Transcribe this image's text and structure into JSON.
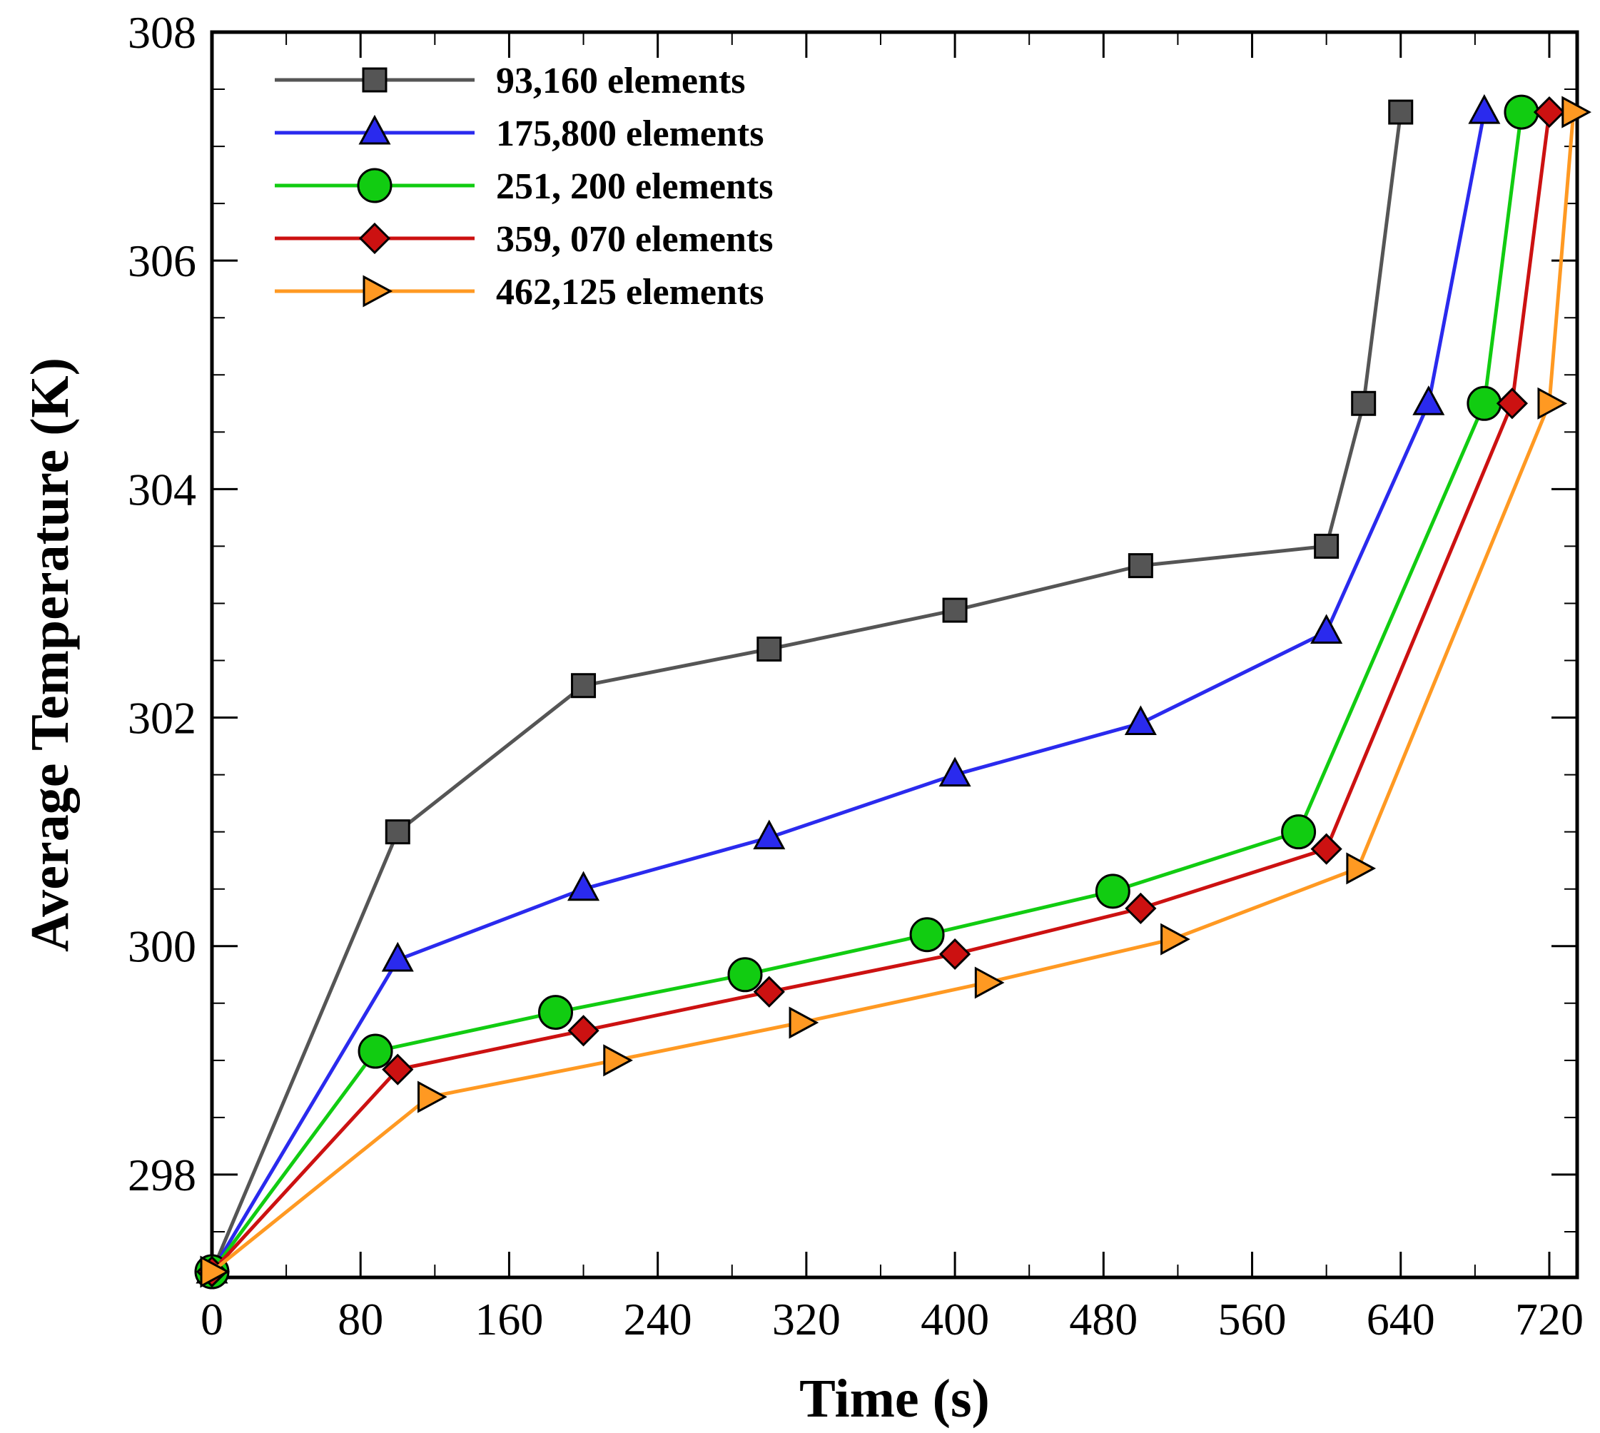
{
  "chart_data": {
    "type": "line",
    "xlabel": "Time (s)",
    "ylabel": "Average Temperature (K)",
    "xlim": [
      0,
      735
    ],
    "ylim": [
      297.1,
      308
    ],
    "x_ticks": [
      0,
      80,
      160,
      240,
      320,
      400,
      480,
      560,
      640,
      720
    ],
    "y_ticks": [
      298,
      300,
      302,
      304,
      306,
      308
    ],
    "legend_position": "top-left",
    "grid": false,
    "series": [
      {
        "name": "93,160 elements",
        "color": "#555555",
        "marker": "square",
        "x": [
          0,
          100,
          200,
          300,
          400,
          500,
          600,
          620,
          640
        ],
        "y": [
          297.15,
          301.0,
          302.28,
          302.6,
          302.94,
          303.33,
          303.5,
          304.75,
          307.3
        ]
      },
      {
        "name": "175,800 elements",
        "color": "#2a2aee",
        "marker": "triangle-up",
        "x": [
          0,
          100,
          200,
          300,
          400,
          500,
          600,
          655,
          685
        ],
        "y": [
          297.15,
          299.88,
          300.5,
          300.95,
          301.5,
          301.95,
          302.75,
          304.75,
          307.3
        ]
      },
      {
        "name": "251, 200 elements",
        "color": "#11cc11",
        "marker": "circle",
        "x": [
          0,
          88,
          185,
          287,
          385,
          485,
          585,
          685,
          705
        ],
        "y": [
          297.15,
          299.08,
          299.42,
          299.75,
          300.1,
          300.48,
          301.0,
          304.75,
          307.3
        ]
      },
      {
        "name": "359, 070 elements",
        "color": "#cc1111",
        "marker": "diamond",
        "x": [
          0,
          100,
          200,
          300,
          400,
          500,
          600,
          700,
          720
        ],
        "y": [
          297.15,
          298.92,
          299.26,
          299.6,
          299.93,
          300.33,
          300.85,
          304.75,
          307.3
        ]
      },
      {
        "name": "462,125 elements",
        "color": "#ff9922",
        "marker": "triangle-right",
        "x": [
          0,
          117,
          217,
          317,
          417,
          517,
          617,
          720,
          733
        ],
        "y": [
          297.15,
          298.68,
          299.0,
          299.33,
          299.68,
          300.06,
          300.68,
          304.75,
          307.3
        ]
      }
    ]
  }
}
